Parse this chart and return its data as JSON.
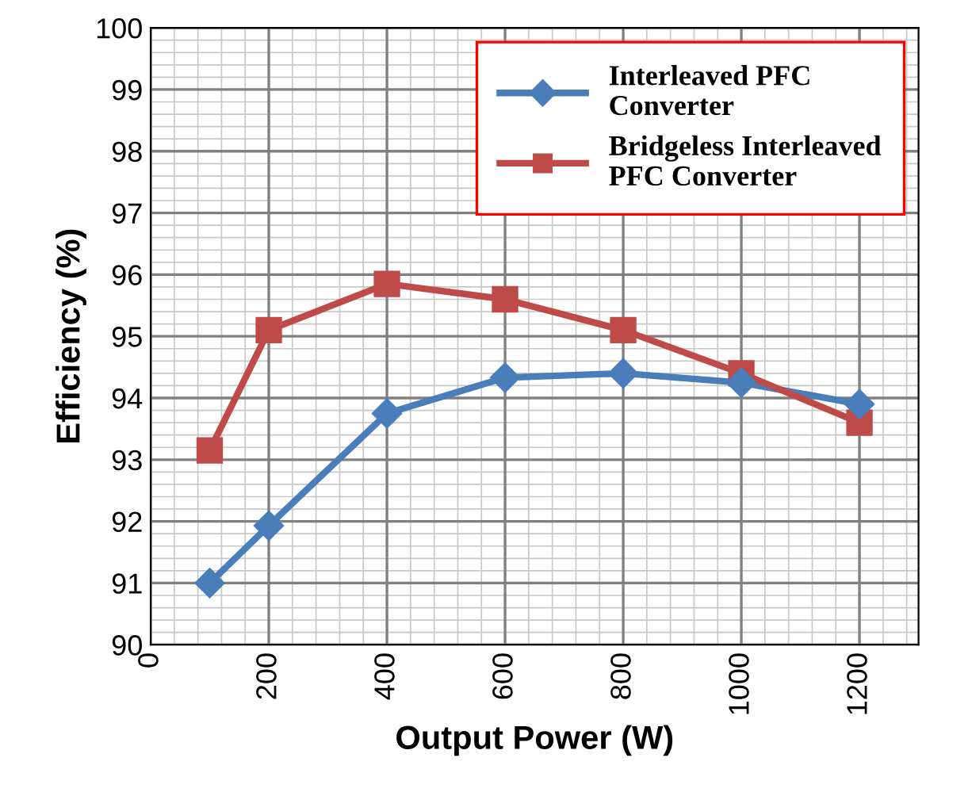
{
  "chart_data": {
    "type": "line",
    "xlabel": "Output Power (W)",
    "ylabel": "Efficiency (%)",
    "x": [
      100,
      200,
      400,
      600,
      800,
      1000,
      1200
    ],
    "series": [
      {
        "name": "Interleaved PFC\nConverter",
        "color": "#4a7ebb",
        "marker": "diamond",
        "values": [
          91.0,
          91.93,
          93.75,
          94.33,
          94.4,
          94.25,
          93.9
        ]
      },
      {
        "name": "Bridgeless Interleaved\nPFC Converter",
        "color": "#be4b48",
        "marker": "square",
        "values": [
          93.15,
          95.1,
          95.85,
          95.6,
          95.1,
          94.4,
          93.6
        ]
      }
    ],
    "xlim": [
      0,
      1300
    ],
    "xticks": [
      0,
      200,
      400,
      600,
      800,
      1000,
      1200
    ],
    "ylim": [
      90,
      100
    ],
    "yticks": [
      90,
      91,
      92,
      93,
      94,
      95,
      96,
      97,
      98,
      99,
      100
    ],
    "grid": true,
    "legend": "top right",
    "line_style": "solid"
  }
}
